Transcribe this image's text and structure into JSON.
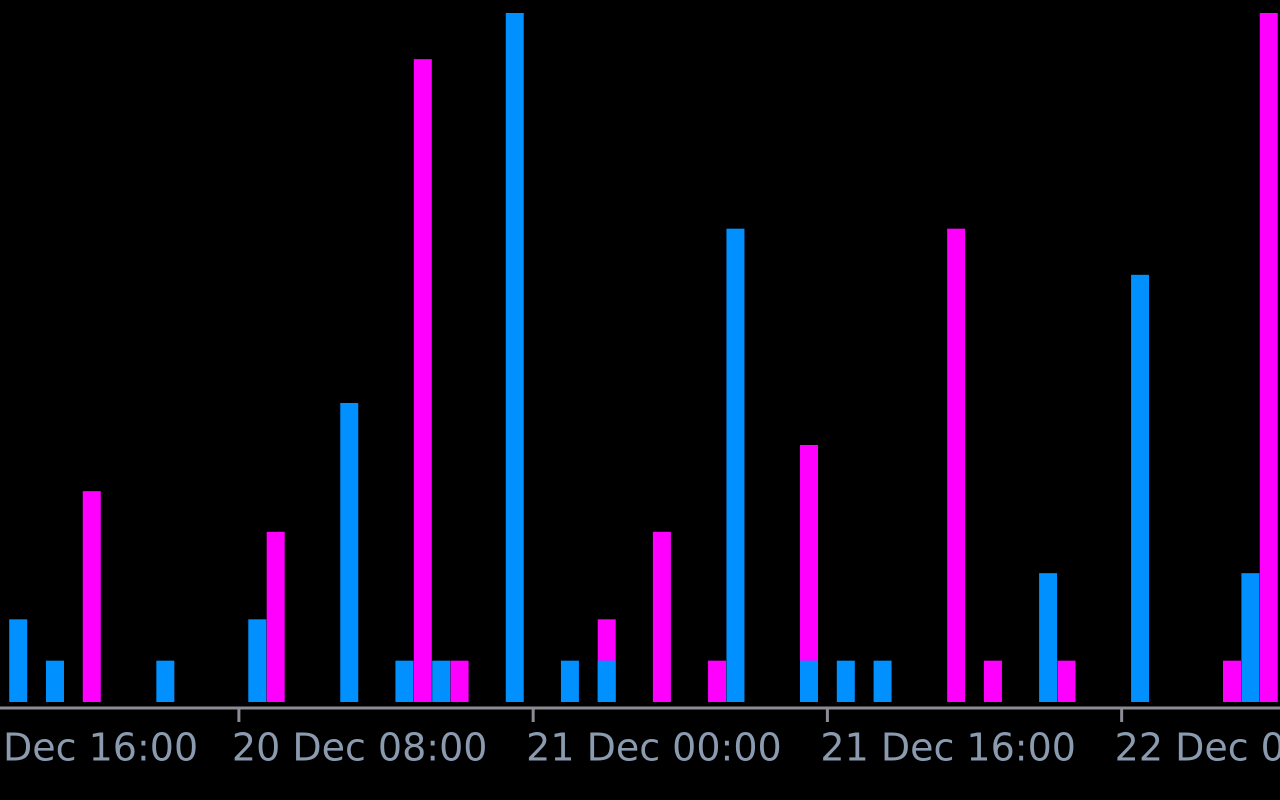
{
  "chart_data": {
    "type": "bar",
    "xlim": [
      -0.99,
      68.61
    ],
    "ylim": [
      0,
      100
    ],
    "xticks": [
      {
        "value": -4,
        "label": "Dec 16:00"
      },
      {
        "value": 12,
        "label": "20 Dec 08:00"
      },
      {
        "value": 28,
        "label": "21 Dec 00:00"
      },
      {
        "value": 44,
        "label": "21 Dec 16:00"
      },
      {
        "value": 60,
        "label": "22 Dec 0"
      }
    ],
    "series": [
      {
        "color": "#ff00ff",
        "x": [
          4,
          14,
          22,
          24,
          32,
          35,
          38,
          43,
          51,
          53,
          57,
          66,
          68
        ],
        "values": [
          30.6,
          24.7,
          93.3,
          6,
          12,
          24.7,
          6,
          37.3,
          68.7,
          6,
          6,
          6,
          100
        ]
      },
      {
        "color": "#0090ff",
        "x": [
          0,
          2,
          8,
          13,
          18,
          21,
          23,
          27,
          30,
          32,
          39,
          43,
          45,
          47,
          56,
          61,
          67
        ],
        "values": [
          12,
          6,
          6,
          12,
          43.4,
          6,
          6,
          100,
          6,
          6,
          68.7,
          6,
          6,
          6,
          18.7,
          62,
          18.7
        ]
      }
    ]
  }
}
